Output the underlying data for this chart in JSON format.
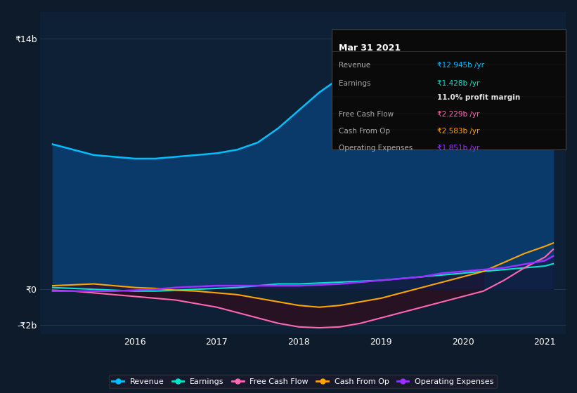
{
  "bg_color": "#0d1b2a",
  "plot_bg_color": "#0d2035",
  "grid_color": "#1e3a5f",
  "title": "Mar 31 2021",
  "ylabel_14b": "₹14b",
  "ylabel_0": "₹0",
  "ylabel_neg2b": "-₹2b",
  "x_labels": [
    "2016",
    "2017",
    "2018",
    "2019",
    "2020",
    "2021"
  ],
  "x_values": [
    2015.0,
    2015.25,
    2015.5,
    2015.75,
    2016.0,
    2016.25,
    2016.5,
    2016.75,
    2017.0,
    2017.25,
    2017.5,
    2017.75,
    2018.0,
    2018.25,
    2018.5,
    2018.75,
    2019.0,
    2019.25,
    2019.5,
    2019.75,
    2020.0,
    2020.25,
    2020.5,
    2020.75,
    2021.0,
    2021.1
  ],
  "revenue": [
    8.1,
    7.8,
    7.5,
    7.4,
    7.3,
    7.3,
    7.4,
    7.5,
    7.6,
    7.8,
    8.2,
    9.0,
    10.0,
    11.0,
    11.8,
    12.3,
    12.7,
    13.0,
    13.2,
    13.5,
    13.7,
    13.5,
    13.2,
    12.8,
    12.6,
    12.945
  ],
  "earnings": [
    0.1,
    0.05,
    0.0,
    -0.05,
    -0.1,
    -0.1,
    -0.05,
    0.0,
    0.05,
    0.1,
    0.2,
    0.3,
    0.3,
    0.35,
    0.4,
    0.45,
    0.5,
    0.6,
    0.7,
    0.8,
    0.9,
    1.0,
    1.1,
    1.2,
    1.3,
    1.428
  ],
  "free_cash_flow": [
    -0.05,
    -0.1,
    -0.2,
    -0.3,
    -0.4,
    -0.5,
    -0.6,
    -0.8,
    -1.0,
    -1.3,
    -1.6,
    -1.9,
    -2.1,
    -2.15,
    -2.1,
    -1.9,
    -1.6,
    -1.3,
    -1.0,
    -0.7,
    -0.4,
    -0.1,
    0.5,
    1.2,
    1.8,
    2.229
  ],
  "cash_from_op": [
    0.2,
    0.25,
    0.3,
    0.2,
    0.1,
    0.05,
    -0.05,
    -0.1,
    -0.2,
    -0.3,
    -0.5,
    -0.7,
    -0.9,
    -1.0,
    -0.9,
    -0.7,
    -0.5,
    -0.2,
    0.1,
    0.4,
    0.7,
    1.0,
    1.5,
    2.0,
    2.4,
    2.583
  ],
  "operating_expenses": [
    -0.1,
    -0.1,
    -0.1,
    -0.1,
    -0.05,
    0.0,
    0.1,
    0.15,
    0.2,
    0.2,
    0.2,
    0.2,
    0.2,
    0.25,
    0.3,
    0.4,
    0.5,
    0.6,
    0.7,
    0.9,
    1.0,
    1.1,
    1.2,
    1.4,
    1.6,
    1.851
  ],
  "revenue_color": "#00bfff",
  "earnings_color": "#00e5cc",
  "free_cash_flow_color": "#ff69b4",
  "cash_from_op_color": "#ffa500",
  "operating_expenses_color": "#9b30ff",
  "revenue_fill": "#0a3a6a",
  "tooltip_bg": "#0a0a0a",
  "tooltip_border": "#333333",
  "tooltip_title": "Mar 31 2021",
  "tooltip_rows": [
    {
      "label": "Revenue",
      "value": "₹12.945b /yr",
      "color": "#00bfff"
    },
    {
      "label": "Earnings",
      "value": "₹1.428b /yr",
      "color": "#00e5cc"
    },
    {
      "label": "",
      "value": "11.0% profit margin",
      "color": "#ffffff"
    },
    {
      "label": "Free Cash Flow",
      "value": "₹2.229b /yr",
      "color": "#ff69b4"
    },
    {
      "label": "Cash From Op",
      "value": "₹2.583b /yr",
      "color": "#ffa500"
    },
    {
      "label": "Operating Expenses",
      "value": "₹1.851b /yr",
      "color": "#9b30ff"
    }
  ],
  "legend_items": [
    {
      "label": "Revenue",
      "color": "#00bfff"
    },
    {
      "label": "Earnings",
      "color": "#00e5cc"
    },
    {
      "label": "Free Cash Flow",
      "color": "#ff69b4"
    },
    {
      "label": "Cash From Op",
      "color": "#ffa500"
    },
    {
      "label": "Operating Expenses",
      "color": "#9b30ff"
    }
  ],
  "ylim": [
    -2.5,
    15.5
  ],
  "xlim": [
    2014.85,
    2021.25
  ]
}
